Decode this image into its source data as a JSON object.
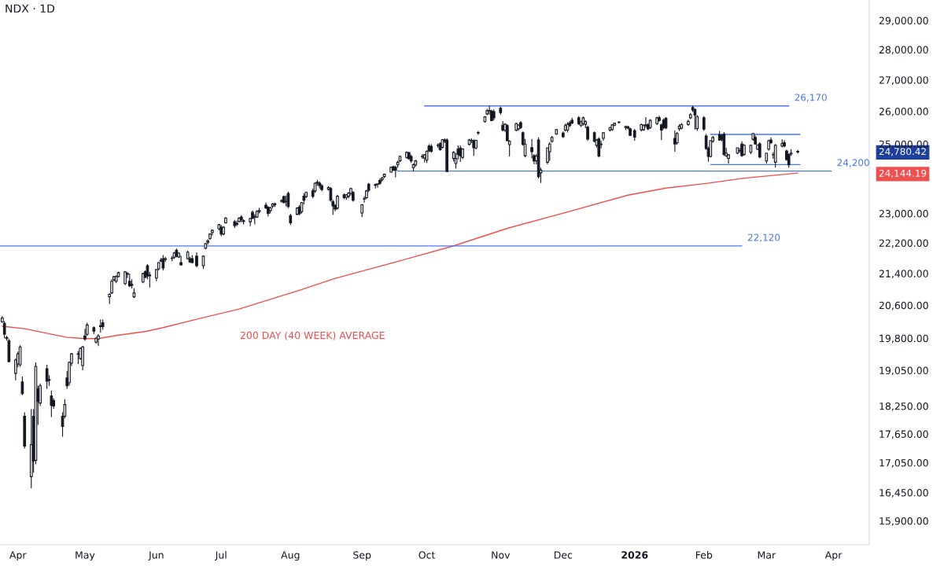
{
  "chart_data": {
    "type": "candlestick",
    "title": "NDX · 1D",
    "color": "#131722",
    "x": [
      "2025-03-25",
      "2025-03-26",
      "2025-03-27",
      "2025-03-28",
      "2025-03-31",
      "2025-04-01",
      "2025-04-02",
      "2025-04-03",
      "2025-04-04",
      "2025-04-07",
      "2025-04-08",
      "2025-04-09",
      "2025-04-10",
      "2025-04-11",
      "2025-04-14",
      "2025-04-15",
      "2025-04-16",
      "2025-04-17",
      "2025-04-21",
      "2025-04-22",
      "2025-04-23",
      "2025-04-24",
      "2025-04-25",
      "2025-04-28",
      "2025-04-29",
      "2025-04-30",
      "2025-05-01",
      "2025-05-02",
      "2025-05-05",
      "2025-05-06",
      "2025-05-07",
      "2025-05-08",
      "2025-05-09",
      "2025-05-12",
      "2025-05-13",
      "2025-05-14",
      "2025-05-15",
      "2025-05-16",
      "2025-05-19",
      "2025-05-20",
      "2025-05-21",
      "2025-05-22",
      "2025-05-23",
      "2025-05-27",
      "2025-05-28",
      "2025-05-29",
      "2025-05-30",
      "2025-06-02",
      "2025-06-03",
      "2025-06-04",
      "2025-06-05",
      "2025-06-06",
      "2025-06-09",
      "2025-06-10",
      "2025-06-11",
      "2025-06-12",
      "2025-06-13",
      "2025-06-16",
      "2025-06-17",
      "2025-06-18",
      "2025-06-20",
      "2025-06-23",
      "2025-06-24",
      "2025-06-25",
      "2025-06-26",
      "2025-06-27",
      "2025-06-30",
      "2025-07-01",
      "2025-07-02",
      "2025-07-03",
      "2025-07-07",
      "2025-07-08",
      "2025-07-09",
      "2025-07-10",
      "2025-07-11",
      "2025-07-14",
      "2025-07-15",
      "2025-07-16",
      "2025-07-17",
      "2025-07-18",
      "2025-07-21",
      "2025-07-22",
      "2025-07-23",
      "2025-07-24",
      "2025-07-25",
      "2025-07-28",
      "2025-07-29",
      "2025-07-30",
      "2025-07-31",
      "2025-08-01",
      "2025-08-04",
      "2025-08-05",
      "2025-08-06",
      "2025-08-07",
      "2025-08-08",
      "2025-08-11",
      "2025-08-12",
      "2025-08-13",
      "2025-08-14",
      "2025-08-15",
      "2025-08-18",
      "2025-08-19",
      "2025-08-20",
      "2025-08-21",
      "2025-08-22",
      "2025-08-25",
      "2025-08-26",
      "2025-08-27",
      "2025-08-28",
      "2025-08-29",
      "2025-09-02",
      "2025-09-03",
      "2025-09-04",
      "2025-09-05",
      "2025-09-08",
      "2025-09-09",
      "2025-09-10",
      "2025-09-11",
      "2025-09-12",
      "2025-09-15",
      "2025-09-16",
      "2025-09-17",
      "2025-09-18",
      "2025-09-19",
      "2025-09-22",
      "2025-09-23",
      "2025-09-24",
      "2025-09-25",
      "2025-09-26",
      "2025-09-29",
      "2025-09-30",
      "2025-10-01",
      "2025-10-02",
      "2025-10-03",
      "2025-10-06",
      "2025-10-07",
      "2025-10-08",
      "2025-10-09",
      "2025-10-10",
      "2025-10-13",
      "2025-10-14",
      "2025-10-15",
      "2025-10-16",
      "2025-10-17",
      "2025-10-20",
      "2025-10-21",
      "2025-10-22",
      "2025-10-23",
      "2025-10-24",
      "2025-10-27",
      "2025-10-28",
      "2025-10-29",
      "2025-10-30",
      "2025-10-31",
      "2025-11-03",
      "2025-11-04",
      "2025-11-05",
      "2025-11-06",
      "2025-11-07",
      "2025-11-10",
      "2025-11-11",
      "2025-11-12",
      "2025-11-13",
      "2025-11-14",
      "2025-11-17",
      "2025-11-18",
      "2025-11-19",
      "2025-11-20",
      "2025-11-21",
      "2025-11-24",
      "2025-11-25",
      "2025-11-26",
      "2025-11-28",
      "2025-12-01",
      "2025-12-02",
      "2025-12-03",
      "2025-12-04",
      "2025-12-05",
      "2025-12-08",
      "2025-12-09",
      "2025-12-10",
      "2025-12-11",
      "2025-12-12",
      "2025-12-15",
      "2025-12-16",
      "2025-12-17",
      "2025-12-18",
      "2025-12-19",
      "2025-12-22",
      "2025-12-23",
      "2025-12-24",
      "2025-12-26",
      "2025-12-29",
      "2025-12-30",
      "2025-12-31",
      "2026-01-02",
      "2026-01-05",
      "2026-01-06",
      "2026-01-07",
      "2026-01-08",
      "2026-01-09",
      "2026-01-12",
      "2026-01-13",
      "2026-01-14",
      "2026-01-15",
      "2026-01-16",
      "2026-01-20",
      "2026-01-21",
      "2026-01-22",
      "2026-01-23",
      "2026-01-26",
      "2026-01-27",
      "2026-01-28",
      "2026-01-29",
      "2026-01-30",
      "2026-02-02",
      "2026-02-03",
      "2026-02-04",
      "2026-02-05",
      "2026-02-06",
      "2026-02-09",
      "2026-02-10",
      "2026-02-11",
      "2026-02-12",
      "2026-02-13",
      "2026-02-17",
      "2026-02-18",
      "2026-02-19",
      "2026-02-20",
      "2026-02-23",
      "2026-02-24",
      "2026-02-25",
      "2026-02-26",
      "2026-02-27",
      "2026-03-02",
      "2026-03-03",
      "2026-03-04",
      "2026-03-05",
      "2026-03-06",
      "2026-03-09",
      "2026-03-10",
      "2026-03-11",
      "2026-03-12",
      "2026-03-13",
      "2026-03-16"
    ],
    "ohlc": [
      [
        20190,
        20330,
        20170,
        20287
      ],
      [
        20155,
        20210,
        19799,
        19893
      ],
      [
        19817,
        19855,
        19744,
        19790
      ],
      [
        19744,
        19781,
        19233,
        19251
      ],
      [
        18983,
        19322,
        18823,
        19287
      ],
      [
        19197,
        19486,
        19120,
        19431
      ],
      [
        19179,
        19633,
        19130,
        19596
      ],
      [
        18788,
        18911,
        18490,
        18525
      ],
      [
        18028,
        18113,
        17346,
        17394
      ],
      [
        16767,
        18182,
        16534,
        17426
      ],
      [
        18028,
        18182,
        16846,
        17085
      ],
      [
        17101,
        19233,
        17020,
        19143
      ],
      [
        18630,
        18700,
        17843,
        18352
      ],
      [
        18318,
        18750,
        18250,
        18700
      ],
      [
        19089,
        19179,
        18630,
        18805
      ],
      [
        18823,
        18940,
        18700,
        18840
      ],
      [
        18473,
        18595,
        18012,
        18267
      ],
      [
        18370,
        18420,
        18190,
        18250
      ],
      [
        18028,
        18113,
        17592,
        17809
      ],
      [
        18028,
        18404,
        17980,
        18284
      ],
      [
        18876,
        19040,
        18630,
        18700
      ],
      [
        18770,
        19250,
        18700,
        19233
      ],
      [
        19215,
        19450,
        19150,
        19431
      ],
      [
        19431,
        19500,
        19197,
        19420
      ],
      [
        19322,
        19580,
        19290,
        19560
      ],
      [
        19161,
        19620,
        19053,
        19596
      ],
      [
        19855,
        20023,
        19740,
        19781
      ],
      [
        19893,
        20173,
        19860,
        20117
      ],
      [
        20050,
        20080,
        19900,
        19968
      ],
      [
        19707,
        19830,
        19670,
        19799
      ],
      [
        19781,
        19900,
        19614,
        19855
      ],
      [
        20080,
        20250,
        19930,
        20098
      ],
      [
        20173,
        20250,
        20000,
        20080
      ],
      [
        20810,
        20900,
        20630,
        20868
      ],
      [
        20906,
        21250,
        20880,
        21201
      ],
      [
        21240,
        21340,
        21200,
        21320
      ],
      [
        21201,
        21360,
        21150,
        21320
      ],
      [
        21320,
        21450,
        21300,
        21420
      ],
      [
        21142,
        21460,
        21100,
        21440
      ],
      [
        21400,
        21440,
        21280,
        21380
      ],
      [
        21201,
        21400,
        21050,
        21083
      ],
      [
        21100,
        21250,
        21020,
        21120
      ],
      [
        20808,
        21023,
        20780,
        20906
      ],
      [
        21181,
        21420,
        21150,
        21400
      ],
      [
        21440,
        21480,
        21280,
        21300
      ],
      [
        21600,
        21640,
        21250,
        21340
      ],
      [
        21360,
        21440,
        21040,
        21340
      ],
      [
        21281,
        21520,
        21200,
        21500
      ],
      [
        21520,
        21700,
        21480,
        21683
      ],
      [
        21720,
        21800,
        21700,
        21745
      ],
      [
        21785,
        21880,
        21480,
        21540
      ],
      [
        21760,
        21830,
        21700,
        21785
      ],
      [
        21790,
        21850,
        21720,
        21800
      ],
      [
        21820,
        21960,
        21780,
        21935
      ],
      [
        22005,
        22050,
        21820,
        21850
      ],
      [
        21830,
        21950,
        21800,
        21930
      ],
      [
        21683,
        21860,
        21600,
        21620
      ],
      [
        21785,
        21990,
        21760,
        21955
      ],
      [
        21785,
        21830,
        21680,
        21700
      ],
      [
        21785,
        21880,
        21660,
        21683
      ],
      [
        21850,
        21950,
        21560,
        21600
      ],
      [
        21600,
        21870,
        21520,
        21850
      ],
      [
        22060,
        22200,
        22030,
        22180
      ],
      [
        22220,
        22300,
        22160,
        22250
      ],
      [
        22320,
        22460,
        22280,
        22440
      ],
      [
        22480,
        22560,
        22400,
        22540
      ],
      [
        22580,
        22710,
        22540,
        22690
      ],
      [
        22620,
        22680,
        22380,
        22440
      ],
      [
        22440,
        22650,
        22400,
        22620
      ],
      [
        22740,
        22900,
        22720,
        22870
      ],
      [
        22770,
        22820,
        22600,
        22670
      ],
      [
        22730,
        22800,
        22650,
        22700
      ],
      [
        22780,
        22900,
        22750,
        22870
      ],
      [
        22900,
        22950,
        22750,
        22830
      ],
      [
        22800,
        22840,
        22700,
        22780
      ],
      [
        22770,
        22880,
        22650,
        22860
      ],
      [
        23030,
        23080,
        22850,
        22860
      ],
      [
        22900,
        22980,
        22700,
        22910
      ],
      [
        22900,
        23090,
        22880,
        23060
      ],
      [
        23046,
        23160,
        23000,
        23080
      ],
      [
        23230,
        23300,
        23120,
        23155
      ],
      [
        23170,
        23200,
        22920,
        23000
      ],
      [
        23080,
        23180,
        23000,
        23155
      ],
      [
        23200,
        23290,
        23150,
        23264
      ],
      [
        23240,
        23300,
        23180,
        23272
      ],
      [
        23340,
        23400,
        23300,
        23356
      ],
      [
        23470,
        23500,
        23280,
        23300
      ],
      [
        23330,
        23500,
        23200,
        23340
      ],
      [
        23560,
        23610,
        23150,
        23190
      ],
      [
        22940,
        22990,
        22680,
        22740
      ],
      [
        22975,
        23170,
        22950,
        23150
      ],
      [
        23180,
        23230,
        22950,
        22990
      ],
      [
        23050,
        23320,
        23000,
        23300
      ],
      [
        23480,
        23560,
        23250,
        23370
      ],
      [
        23470,
        23610,
        23430,
        23590
      ],
      [
        23630,
        23700,
        23420,
        23480
      ],
      [
        23630,
        23870,
        23580,
        23850
      ],
      [
        23860,
        23950,
        23780,
        23880
      ],
      [
        23850,
        23900,
        23700,
        23780
      ],
      [
        23780,
        23830,
        23620,
        23670
      ],
      [
        23680,
        23760,
        23640,
        23730
      ],
      [
        23700,
        23740,
        23330,
        23370
      ],
      [
        23330,
        23380,
        22960,
        23210
      ],
      [
        23220,
        23260,
        23060,
        23120
      ],
      [
        23150,
        23520,
        23100,
        23480
      ],
      [
        23520,
        23560,
        23400,
        23440
      ],
      [
        23450,
        23540,
        23380,
        23520
      ],
      [
        23480,
        23600,
        23420,
        23570
      ],
      [
        23560,
        23720,
        23500,
        23700
      ],
      [
        23590,
        23620,
        23330,
        23370
      ],
      [
        23010,
        23260,
        22900,
        23240
      ],
      [
        23400,
        23480,
        23300,
        23410
      ],
      [
        23440,
        23660,
        23400,
        23630
      ],
      [
        23820,
        23860,
        23600,
        23650
      ],
      [
        23810,
        23840,
        23700,
        23790
      ],
      [
        23820,
        23850,
        23720,
        23830
      ],
      [
        23930,
        23990,
        23800,
        23850
      ],
      [
        23950,
        24030,
        23900,
        24000
      ],
      [
        24040,
        24130,
        24000,
        24110
      ],
      [
        24170,
        24330,
        24150,
        24310
      ],
      [
        24330,
        24360,
        24200,
        24230
      ],
      [
        24310,
        24360,
        24020,
        24220
      ],
      [
        24380,
        24500,
        24300,
        24460
      ],
      [
        24500,
        24660,
        24470,
        24630
      ],
      [
        24600,
        24780,
        24560,
        24750
      ],
      [
        24740,
        24770,
        24530,
        24570
      ],
      [
        24630,
        24680,
        24440,
        24500
      ],
      [
        24300,
        24420,
        24190,
        24390
      ],
      [
        24380,
        24530,
        24330,
        24500
      ],
      [
        24620,
        24700,
        24560,
        24630
      ],
      [
        24580,
        24700,
        24450,
        24680
      ],
      [
        24520,
        24810,
        24440,
        24780
      ],
      [
        24940,
        24990,
        24760,
        24800
      ],
      [
        24930,
        25000,
        24740,
        24780
      ],
      [
        24950,
        25020,
        24880,
        24960
      ],
      [
        25010,
        25050,
        24800,
        24830
      ],
      [
        24900,
        25150,
        24870,
        25130
      ],
      [
        25120,
        25170,
        25030,
        25080
      ],
      [
        25120,
        25170,
        24180,
        24190
      ],
      [
        24570,
        24790,
        24480,
        24750
      ],
      [
        24420,
        24730,
        24270,
        24570
      ],
      [
        24845,
        24960,
        24540,
        24690
      ],
      [
        24880,
        24960,
        24470,
        24650
      ],
      [
        24600,
        24870,
        24550,
        24850
      ],
      [
        24990,
        25150,
        24960,
        25120
      ],
      [
        25100,
        25170,
        25030,
        25110
      ],
      [
        25100,
        25140,
        24650,
        24890
      ],
      [
        24880,
        25130,
        24840,
        25110
      ],
      [
        25330,
        25390,
        25280,
        25350
      ],
      [
        25680,
        25850,
        25650,
        25830
      ],
      [
        25920,
        26080,
        25880,
        26020
      ],
      [
        26020,
        26180,
        25900,
        26030
      ],
      [
        26010,
        26050,
        25690,
        25710
      ],
      [
        25990,
        26060,
        25720,
        25800
      ],
      [
        26100,
        26150,
        25900,
        25960
      ],
      [
        25570,
        25700,
        25380,
        25420
      ],
      [
        25420,
        25630,
        25360,
        25600
      ],
      [
        25560,
        25600,
        25080,
        25100
      ],
      [
        24980,
        25120,
        24630,
        25080
      ],
      [
        25420,
        25650,
        25380,
        25620
      ],
      [
        25460,
        25600,
        25400,
        25570
      ],
      [
        25650,
        25700,
        25450,
        25500
      ],
      [
        25340,
        25380,
        24950,
        24990
      ],
      [
        24650,
        25150,
        24600,
        25000
      ],
      [
        24890,
        25150,
        24570,
        24770
      ],
      [
        24650,
        24700,
        24400,
        24500
      ],
      [
        24500,
        24700,
        24400,
        24640
      ],
      [
        25120,
        25200,
        23990,
        24040
      ],
      [
        24150,
        24300,
        23860,
        24230
      ],
      [
        24460,
        24900,
        24400,
        24880
      ],
      [
        24770,
        25060,
        24500,
        25000
      ],
      [
        25080,
        25240,
        25040,
        25200
      ],
      [
        25300,
        25450,
        25280,
        25436
      ],
      [
        25330,
        25380,
        25180,
        25220
      ],
      [
        25420,
        25620,
        25380,
        25560
      ],
      [
        25420,
        25660,
        25350,
        25600
      ],
      [
        25640,
        25700,
        25520,
        25560
      ],
      [
        25720,
        25800,
        25600,
        25640
      ],
      [
        25800,
        25850,
        25580,
        25620
      ],
      [
        25560,
        25710,
        25520,
        25680
      ],
      [
        25620,
        25840,
        25560,
        25800
      ],
      [
        25600,
        25720,
        25480,
        25680
      ],
      [
        25510,
        25560,
        25100,
        25150
      ],
      [
        25340,
        25380,
        25050,
        25080
      ],
      [
        24960,
        25150,
        24900,
        25120
      ],
      [
        25150,
        25200,
        24600,
        24640
      ],
      [
        24980,
        25100,
        24870,
        25000
      ],
      [
        25170,
        25350,
        25100,
        25340
      ],
      [
        25420,
        25520,
        25380,
        25500
      ],
      [
        25440,
        25600,
        25400,
        25580
      ],
      [
        25570,
        25650,
        25540,
        25630
      ],
      [
        25660,
        25700,
        25620,
        25670
      ],
      [
        25500,
        25560,
        25420,
        25530
      ],
      [
        25520,
        25560,
        25440,
        25480
      ],
      [
        25460,
        25500,
        25240,
        25260
      ],
      [
        25400,
        25460,
        25100,
        25210
      ],
      [
        25430,
        25620,
        25380,
        25590
      ],
      [
        25430,
        25600,
        25400,
        25560
      ],
      [
        25560,
        25820,
        25500,
        25580
      ],
      [
        25580,
        25640,
        25420,
        25460
      ],
      [
        25500,
        25760,
        25460,
        25720
      ],
      [
        25620,
        25830,
        25580,
        25800
      ],
      [
        25800,
        25860,
        25680,
        25720
      ],
      [
        25580,
        25620,
        25120,
        25420
      ],
      [
        25730,
        25780,
        25450,
        25500
      ],
      [
        25780,
        25820,
        25450,
        25490
      ],
      [
        25170,
        25410,
        24770,
        25000
      ],
      [
        25040,
        25360,
        24980,
        25320
      ],
      [
        25460,
        25600,
        25400,
        25540
      ],
      [
        25480,
        25640,
        25440,
        25590
      ],
      [
        25590,
        25740,
        25550,
        25690
      ],
      [
        25800,
        25950,
        25760,
        25900
      ],
      [
        26120,
        26170,
        25980,
        26040
      ],
      [
        26060,
        26090,
        25440,
        25890
      ],
      [
        25466,
        25880,
        25400,
        25840
      ],
      [
        25800,
        25850,
        25400,
        25450
      ],
      [
        25240,
        25300,
        24830,
        24863
      ],
      [
        24863,
        24920,
        24474,
        24631
      ],
      [
        24631,
        25120,
        24600,
        25100
      ],
      [
        25080,
        25240,
        25040,
        25198
      ],
      [
        25280,
        25400,
        25100,
        25120
      ],
      [
        25250,
        25300,
        25080,
        25130
      ],
      [
        25300,
        25360,
        24650,
        24690
      ],
      [
        24650,
        24880,
        24610,
        24728
      ],
      [
        24573,
        24700,
        24420,
        24680
      ],
      [
        24728,
        24900,
        24700,
        24886
      ],
      [
        24800,
        24880,
        24740,
        24806
      ],
      [
        25000,
        25080,
        24620,
        24654
      ],
      [
        24690,
        24990,
        24650,
        24963
      ],
      [
        24752,
        24980,
        24700,
        24963
      ],
      [
        25145,
        25330,
        25100,
        25320
      ],
      [
        25198,
        25260,
        24980,
        25002
      ],
      [
        24845,
        24990,
        24820,
        24963
      ],
      [
        25002,
        25050,
        24580,
        24612
      ],
      [
        24497,
        24740,
        24420,
        24728
      ],
      [
        24845,
        25130,
        24800,
        25100
      ],
      [
        25120,
        25200,
        25000,
        25040
      ],
      [
        24680,
        24760,
        24560,
        24677
      ],
      [
        24460,
        25000,
        24307,
        24963
      ],
      [
        24940,
        25140,
        24900,
        25010
      ],
      [
        25040,
        25120,
        24900,
        24940
      ],
      [
        24790,
        24830,
        24500,
        24536
      ],
      [
        24690,
        24720,
        24300,
        24382
      ],
      [
        24700,
        24845,
        24650,
        24728
      ],
      [
        24760,
        24820,
        24720,
        24780.42
      ]
    ],
    "series": [
      {
        "type": "line",
        "name": "200 DAY (40 WEEK) AVERAGE",
        "color": "#ee4f4f",
        "x": [
          "2025-03-25",
          "2025-04-04",
          "2025-04-16",
          "2025-04-23",
          "2025-05-01",
          "2025-05-07",
          "2025-05-15",
          "2025-05-28",
          "2025-06-05",
          "2025-06-20",
          "2025-07-09",
          "2025-08-06",
          "2025-08-21",
          "2025-09-16",
          "2025-10-13",
          "2025-11-06",
          "2025-12-03",
          "2025-12-30",
          "2026-01-16",
          "2026-02-03",
          "2026-02-20",
          "2026-03-16"
        ],
        "values": [
          20086,
          20027,
          19896,
          19821,
          19790,
          19790,
          19865,
          19958,
          20054,
          20256,
          20506,
          20990,
          21274,
          21680,
          22122,
          22591,
          23043,
          23510,
          23711,
          23844,
          23995,
          24144.19
        ]
      },
      {
        "type": "line",
        "name": "26,170",
        "color": "#4a78e8",
        "x": [
          "2025-09-30",
          "2026-03-12"
        ],
        "values": [
          26170,
          26170
        ]
      },
      {
        "type": "line",
        "name": "24,200",
        "color": "#4a78e8",
        "x": [
          "2025-09-18",
          "2026-03-31"
        ],
        "values": [
          24200,
          24200
        ]
      },
      {
        "type": "line",
        "name": "22,120",
        "color": "#4a78e8",
        "x": [
          "2025-03-24",
          "2026-02-19"
        ],
        "values": [
          22120,
          22120
        ]
      },
      {
        "type": "line",
        "color": "#4a78e8",
        "x": [
          "2026-02-05",
          "2026-03-17"
        ],
        "values": [
          25290,
          25290
        ]
      },
      {
        "type": "line",
        "color": "#4a78e8",
        "x": [
          "2026-02-05",
          "2026-03-17"
        ],
        "values": [
          24390,
          24390
        ]
      }
    ],
    "log": true,
    "xlim": [
      "2025-03-24",
      "2026-04-17"
    ],
    "ylim": [
      15450,
      29720
    ],
    "xticks": [
      {
        "value": "2025-04-01",
        "label": "Apr"
      },
      {
        "value": "2025-05-01",
        "label": "May"
      },
      {
        "value": "2025-06-02",
        "label": "Jun"
      },
      {
        "value": "2025-07-01",
        "label": "Jul"
      },
      {
        "value": "2025-08-01",
        "label": "Aug"
      },
      {
        "value": "2025-09-02",
        "label": "Sep"
      },
      {
        "value": "2025-10-01",
        "label": "Oct"
      },
      {
        "value": "2025-11-03",
        "label": "Nov"
      },
      {
        "value": "2025-12-01",
        "label": "Dec"
      },
      {
        "value": "2026-01-02",
        "label": "2026"
      },
      {
        "value": "2026-02-02",
        "label": "Feb"
      },
      {
        "value": "2026-03-02",
        "label": "Mar"
      },
      {
        "value": "2026-04-01",
        "label": "Apr"
      }
    ],
    "yticks": [
      {
        "value": 15900,
        "label": "15,900.00"
      },
      {
        "value": 16450,
        "label": "16,450.00"
      },
      {
        "value": 17050,
        "label": "17,050.00"
      },
      {
        "value": 17650,
        "label": "17,650.00"
      },
      {
        "value": 18250,
        "label": "18,250.00"
      },
      {
        "value": 19050,
        "label": "19,050.00"
      },
      {
        "value": 19800,
        "label": "19,800.00"
      },
      {
        "value": 20600,
        "label": "20,600.00"
      },
      {
        "value": 21400,
        "label": "21,400.00"
      },
      {
        "value": 22200,
        "label": "22,200.00"
      },
      {
        "value": 23000,
        "label": "23,000.00"
      },
      {
        "value": 24144.19,
        "label": "24,144.19"
      },
      {
        "value": 24780.42,
        "label": "24,780.42"
      },
      {
        "value": 25000,
        "label": "25,000.00"
      },
      {
        "value": 26000,
        "label": "26,000.00"
      },
      {
        "value": 27000,
        "label": "27,000.00"
      },
      {
        "value": 28000,
        "label": "28,000.00"
      },
      {
        "value": 29000,
        "label": "29,000.00"
      }
    ]
  }
}
